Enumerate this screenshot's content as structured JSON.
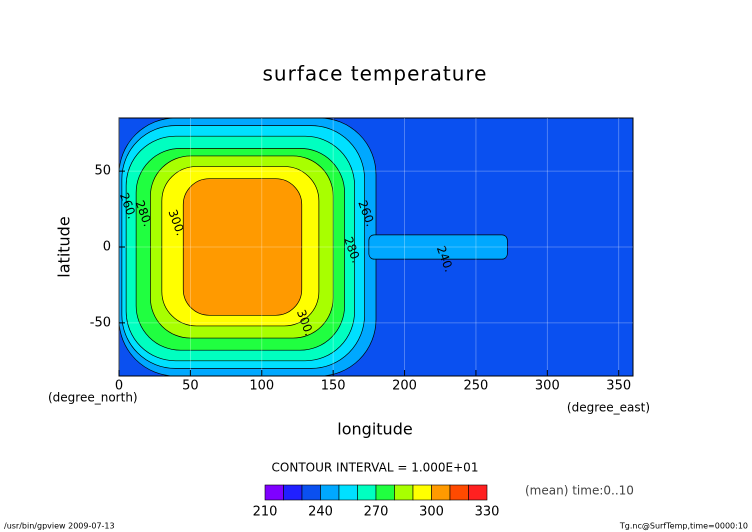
{
  "chart_data": {
    "type": "contour",
    "title": "surface temperature",
    "x_label": "longitude",
    "y_label": "latitude",
    "x_unit": "(degree_east)",
    "y_unit": "(degree_north)",
    "xlim": [
      0,
      360
    ],
    "ylim": [
      -85,
      85
    ],
    "xticks": [
      0,
      50,
      100,
      150,
      200,
      250,
      300,
      350
    ],
    "yticks": [
      -50,
      0,
      50
    ],
    "grid": true,
    "contour_interval": "CONTOUR INTERVAL = 1.000E+01",
    "levels": [
      210,
      220,
      230,
      240,
      250,
      260,
      270,
      280,
      290,
      300,
      310,
      320,
      330
    ],
    "colors": [
      "#7f00ff",
      "#2020ff",
      "#0a50f0",
      "#00a8ff",
      "#00e0ff",
      "#00ffc0",
      "#20ff40",
      "#a8ff00",
      "#ffff00",
      "#ff9a00",
      "#ff4a00",
      "#ff2020"
    ],
    "over_color": "#ffa0a0",
    "cbar_ticks": [
      210,
      240,
      270,
      300,
      330
    ],
    "background_level": 230,
    "regions": [
      {
        "level": 240,
        "lon": [
          0,
          180
        ],
        "lat": [
          -85,
          85
        ]
      },
      {
        "level": 240,
        "lon": [
          175,
          272
        ],
        "lat": [
          -8,
          8
        ]
      },
      {
        "level": 250,
        "lon": [
          2,
          172
        ],
        "lat": [
          -80,
          80
        ]
      },
      {
        "level": 260,
        "lon": [
          5,
          165
        ],
        "lat": [
          -75,
          73
        ]
      },
      {
        "level": 270,
        "lon": [
          12,
          158
        ],
        "lat": [
          -68,
          65
        ]
      },
      {
        "level": 280,
        "lon": [
          22,
          150
        ],
        "lat": [
          -60,
          60
        ]
      },
      {
        "level": 290,
        "lon": [
          30,
          140
        ],
        "lat": [
          -52,
          53
        ]
      },
      {
        "level": 300,
        "lon": [
          45,
          128
        ],
        "lat": [
          -45,
          45
        ]
      }
    ],
    "contour_labels": [
      {
        "text": "260.",
        "lon": 6,
        "lat": 27
      },
      {
        "text": "280.",
        "lon": 17,
        "lat": 22
      },
      {
        "text": "300.",
        "lon": 40,
        "lat": 16
      },
      {
        "text": "260.",
        "lon": 173,
        "lat": 22
      },
      {
        "text": "280.",
        "lon": 163,
        "lat": -2
      },
      {
        "text": "300.",
        "lon": 130,
        "lat": -50
      },
      {
        "text": "240.",
        "lon": 228,
        "lat": -8
      }
    ],
    "note_right": "(mean) time:0..10",
    "footer_left": "/usr/bin/gpview  2009-07-13",
    "footer_right": "Tg.nc@SurfTemp,time=0000:10"
  }
}
